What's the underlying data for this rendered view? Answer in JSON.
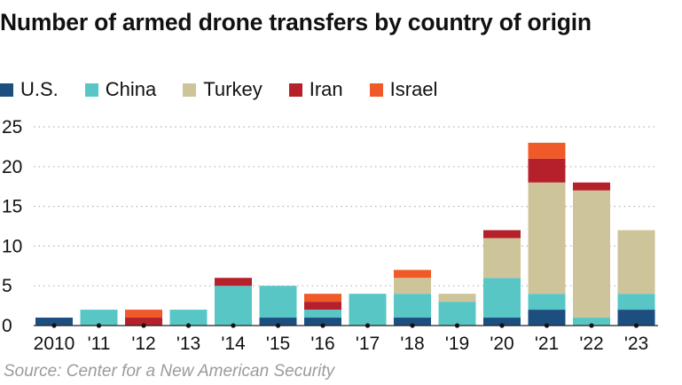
{
  "chart_data": {
    "type": "bar",
    "stacked": true,
    "title": "Number of armed drone transfers by country of origin",
    "categories": [
      "2010",
      "'11",
      "'12",
      "'13",
      "'14",
      "'15",
      "'16",
      "'17",
      "'18",
      "'19",
      "'20",
      "'21",
      "'22",
      "'23"
    ],
    "series": [
      {
        "name": "U.S.",
        "color": "#1c4e80",
        "values": [
          1,
          0,
          0,
          0,
          0,
          1,
          1,
          0,
          1,
          0,
          1,
          2,
          0,
          2
        ]
      },
      {
        "name": "China",
        "color": "#59c6c6",
        "values": [
          0,
          2,
          0,
          2,
          5,
          4,
          1,
          4,
          3,
          3,
          5,
          2,
          1,
          2
        ]
      },
      {
        "name": "Turkey",
        "color": "#cec49a",
        "values": [
          0,
          0,
          0,
          0,
          0,
          0,
          0,
          0,
          2,
          1,
          5,
          14,
          16,
          8
        ]
      },
      {
        "name": "Iran",
        "color": "#b5202a",
        "values": [
          0,
          0,
          1,
          0,
          1,
          0,
          1,
          0,
          0,
          0,
          1,
          3,
          1,
          0
        ]
      },
      {
        "name": "Israel",
        "color": "#f05a28",
        "values": [
          0,
          0,
          1,
          0,
          0,
          0,
          1,
          0,
          1,
          0,
          0,
          2,
          0,
          0
        ]
      }
    ],
    "ylim": [
      0,
      25
    ],
    "yticks": [
      0,
      5,
      10,
      15,
      20,
      25
    ],
    "xlabel": "",
    "ylabel": "",
    "grid": true,
    "legend": "top-left"
  },
  "source": "Source: Center for a New American Security"
}
